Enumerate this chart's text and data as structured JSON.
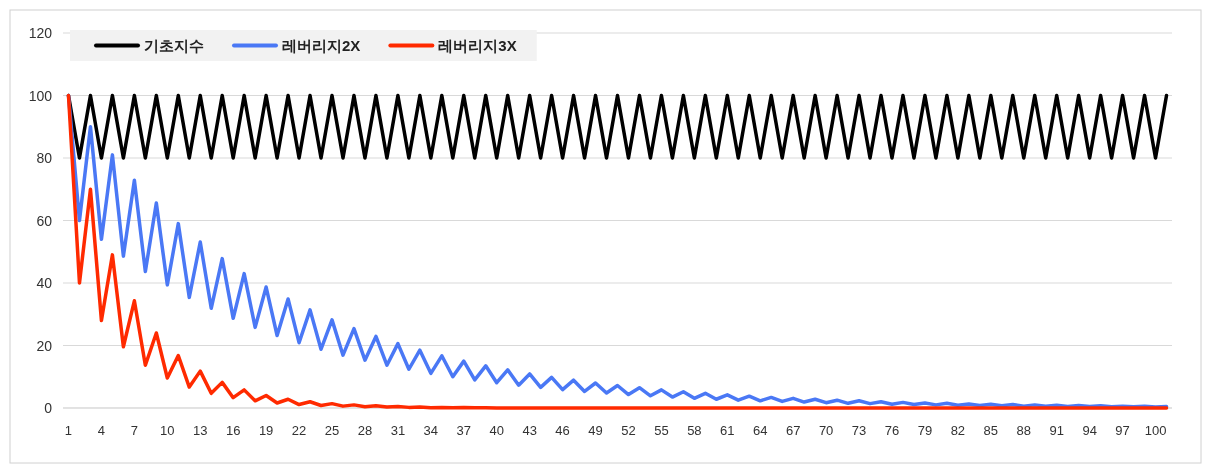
{
  "chart_data": {
    "type": "line",
    "categories": [
      "1",
      null,
      null,
      "4",
      null,
      null,
      "7",
      null,
      null,
      "10",
      null,
      null,
      "13",
      null,
      null,
      "16",
      null,
      null,
      "19",
      null,
      null,
      "22",
      null,
      null,
      "25",
      null,
      null,
      "28",
      null,
      null,
      "31",
      null,
      null,
      "34",
      null,
      null,
      "37",
      null,
      null,
      "40",
      null,
      null,
      "43",
      null,
      null,
      "46",
      null,
      null,
      "49",
      null,
      null,
      "52",
      null,
      null,
      "55",
      null,
      null,
      "58",
      null,
      null,
      "61",
      null,
      null,
      "64",
      null,
      null,
      "67",
      null,
      null,
      "70",
      null,
      null,
      "73",
      null,
      null,
      "76",
      null,
      null,
      "79",
      null,
      null,
      "82",
      null,
      null,
      "85",
      null,
      null,
      "88",
      null,
      null,
      "91",
      null,
      null,
      "94",
      null,
      null,
      "97",
      null,
      null,
      "100",
      null
    ],
    "series": [
      {
        "name": "기초지수",
        "color": "#000000",
        "values": [
          100,
          80,
          100,
          80,
          100,
          80,
          100,
          80,
          100,
          80,
          100,
          80,
          100,
          80,
          100,
          80,
          100,
          80,
          100,
          80,
          100,
          80,
          100,
          80,
          100,
          80,
          100,
          80,
          100,
          80,
          100,
          80,
          100,
          80,
          100,
          80,
          100,
          80,
          100,
          80,
          100,
          80,
          100,
          80,
          100,
          80,
          100,
          80,
          100,
          80,
          100,
          80,
          100,
          80,
          100,
          80,
          100,
          80,
          100,
          80,
          100,
          80,
          100,
          80,
          100,
          80,
          100,
          80,
          100,
          80,
          100,
          80,
          100,
          80,
          100,
          80,
          100,
          80,
          100,
          80,
          100,
          80,
          100,
          80,
          100,
          80,
          100,
          80,
          100,
          80,
          100,
          80,
          100,
          80,
          100,
          80,
          100,
          80,
          100,
          80,
          100
        ]
      },
      {
        "name": "레버리지2X",
        "color": "#4a78f5",
        "values": [
          100,
          60,
          90,
          54,
          81,
          48.6,
          72.9,
          43.7,
          65.6,
          39.4,
          59,
          35.4,
          53.1,
          31.9,
          47.8,
          28.7,
          43,
          25.8,
          38.7,
          23.2,
          34.9,
          20.9,
          31.4,
          18.8,
          28.2,
          16.9,
          25.4,
          15.3,
          22.9,
          13.7,
          20.6,
          12.4,
          18.5,
          11.1,
          16.7,
          10,
          15,
          9,
          13.5,
          8.1,
          12.2,
          7.3,
          10.9,
          6.6,
          9.8,
          5.9,
          8.9,
          5.3,
          8,
          4.8,
          7.2,
          4.3,
          6.5,
          3.9,
          5.8,
          3.5,
          5.2,
          3.1,
          4.7,
          2.8,
          4.2,
          2.5,
          3.8,
          2.3,
          3.4,
          2.1,
          3.1,
          1.9,
          2.8,
          1.7,
          2.5,
          1.5,
          2.3,
          1.4,
          2,
          1.2,
          1.8,
          1.1,
          1.6,
          1,
          1.5,
          0.9,
          1.3,
          0.8,
          1.2,
          0.7,
          1.1,
          0.6,
          1,
          0.6,
          0.9,
          0.5,
          0.8,
          0.5,
          0.7,
          0.4,
          0.6,
          0.4,
          0.6,
          0.3,
          0.5
        ]
      },
      {
        "name": "레버리지3X",
        "color": "#ff2a00",
        "values": [
          100,
          40,
          70,
          28,
          49,
          19.6,
          34.3,
          13.7,
          24,
          9.6,
          16.8,
          6.7,
          11.8,
          4.7,
          8.2,
          3.3,
          5.8,
          2.3,
          4,
          1.6,
          2.8,
          1.1,
          2,
          0.8,
          1.4,
          0.6,
          1,
          0.4,
          0.7,
          0.3,
          0.5,
          0.2,
          0.3,
          0.1,
          0.2,
          0.1,
          0.2,
          0.1,
          0.1,
          0,
          0,
          0,
          0,
          0,
          0,
          0,
          0,
          0,
          0,
          0,
          0,
          0,
          0,
          0,
          0,
          0,
          0,
          0,
          0,
          0,
          0,
          0,
          0,
          0,
          0,
          0,
          0,
          0,
          0,
          0,
          0,
          0,
          0,
          0,
          0,
          0,
          0,
          0,
          0,
          0,
          0,
          0,
          0,
          0,
          0,
          0,
          0,
          0,
          0,
          0,
          0,
          0,
          0,
          0,
          0,
          0,
          0,
          0,
          0,
          0,
          0
        ]
      }
    ],
    "ylim": [
      0,
      120
    ],
    "yticks": [
      0,
      20,
      40,
      60,
      80,
      100,
      120
    ],
    "grid": "y",
    "legend": "top left",
    "marker": "none",
    "line_style": "solid"
  }
}
